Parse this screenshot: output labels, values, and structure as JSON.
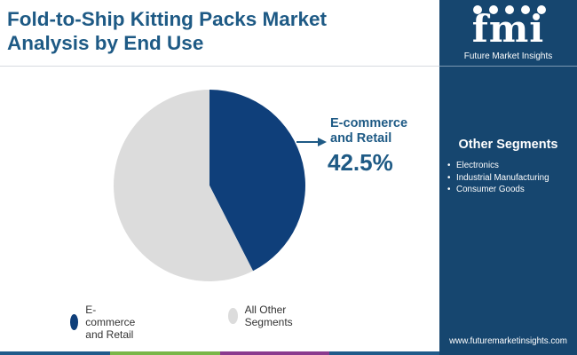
{
  "title_lines": [
    "Fold-to-Ship Kitting Packs Market",
    "Analysis by End Use"
  ],
  "logo": {
    "mark": "fmi",
    "name": "Future Market Insights"
  },
  "sidebar": {
    "segments_title": "Other Segments",
    "segments": [
      "Electronics",
      "Industrial Manufacturing",
      "Consumer Goods"
    ],
    "website": "www.futuremarketinsights.com"
  },
  "callout": {
    "label": "E-commerce and Retail",
    "value": "42.5%"
  },
  "colors": {
    "primary": "#0f3f7a",
    "other": "#dcdcdc",
    "title": "#1e5a85",
    "sidebar": "#16466f",
    "bar": [
      "#1f5b8a",
      "#7ab648",
      "#8a3a8e",
      "#1f5b8a"
    ]
  },
  "chart_data": {
    "type": "pie",
    "slices": [
      {
        "label": "E-commerce and Retail",
        "value": 42.5,
        "color": "#0f3f7a"
      },
      {
        "label": "All Other Segments",
        "value": 57.5,
        "color": "#dcdcdc"
      }
    ],
    "start_angle_deg": 0,
    "direction": "clockwise",
    "legend": [
      "E-commerce and Retail",
      "All Other Segments"
    ],
    "legend_position": "bottom"
  }
}
